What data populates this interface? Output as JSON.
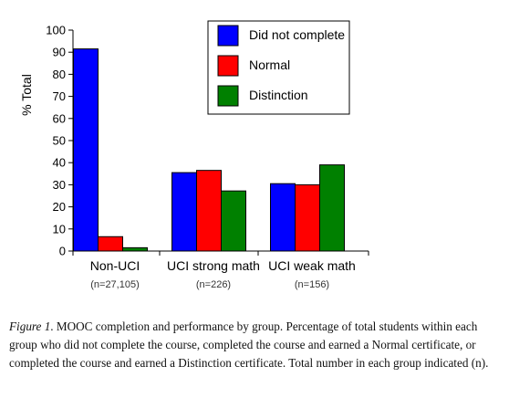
{
  "chart_data": {
    "type": "bar",
    "ylabel": "% Total",
    "ylim": [
      0,
      100
    ],
    "yticks": [
      0,
      10,
      20,
      30,
      40,
      50,
      60,
      70,
      80,
      90,
      100
    ],
    "categories": [
      "Non-UCI",
      "UCI strong math",
      "UCI weak math"
    ],
    "category_counts": [
      "(n=27,105)",
      "(n=226)",
      "(n=156)"
    ],
    "series": [
      {
        "name": "Did not complete",
        "color": "#0000ff",
        "values": [
          91.5,
          35.5,
          30.5
        ]
      },
      {
        "name": "Normal",
        "color": "#ff0000",
        "values": [
          6.5,
          36.5,
          30
        ]
      },
      {
        "name": "Distinction",
        "color": "#008000",
        "values": [
          1.5,
          27.2,
          39
        ]
      }
    ],
    "legend_position": "top-right",
    "grid": false
  },
  "caption": {
    "label": "Figure 1",
    "text": ". MOOC completion and performance by group. Percentage of total students within each group who did not complete the course, completed the course and earned a Normal certificate, or completed the course and earned a Distinction certificate. Total number in each group indicated (n)."
  }
}
